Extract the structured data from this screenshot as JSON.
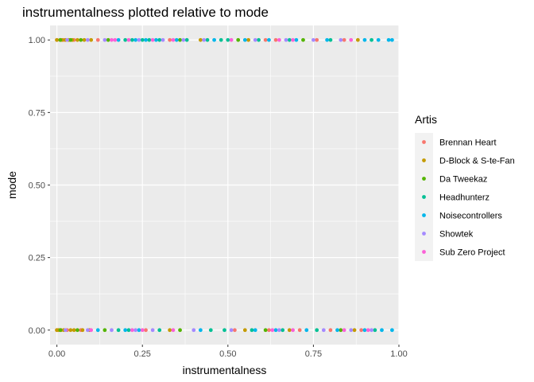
{
  "chart_data": {
    "type": "scatter",
    "title": "instrumentalness plotted relative to mode",
    "xlabel": "instrumentalness",
    "ylabel": "mode",
    "xlim": [
      -0.02,
      1.0
    ],
    "ylim": [
      -0.05,
      1.05
    ],
    "x_ticks": [
      0.0,
      0.25,
      0.5,
      0.75,
      1.0
    ],
    "x_tick_labels": [
      "0.00",
      "0.25",
      "0.50",
      "0.75",
      "1.00"
    ],
    "y_ticks": [
      0.0,
      0.25,
      0.5,
      0.75,
      1.0
    ],
    "y_tick_labels": [
      "0.00",
      "0.25",
      "0.50",
      "0.75",
      "1.00"
    ],
    "grid": true,
    "legend": {
      "title": "Artis",
      "placement": "right"
    },
    "series": [
      {
        "name": "Brennan Heart",
        "color": "#F8766D",
        "points": [
          [
            0.0,
            1
          ],
          [
            0.02,
            1
          ],
          [
            0.05,
            1
          ],
          [
            0.12,
            1
          ],
          [
            0.33,
            1
          ],
          [
            0.61,
            1
          ],
          [
            0.64,
            1
          ],
          [
            0.76,
            1
          ],
          [
            0.84,
            1
          ],
          [
            0.0,
            0
          ],
          [
            0.03,
            0
          ],
          [
            0.07,
            0
          ],
          [
            0.26,
            0
          ],
          [
            0.52,
            0
          ],
          [
            0.62,
            0
          ],
          [
            0.71,
            0
          ],
          [
            0.8,
            0
          ],
          [
            0.89,
            0
          ]
        ]
      },
      {
        "name": "D-Block & S-te-Fan",
        "color": "#C49A00",
        "points": [
          [
            0.0,
            1
          ],
          [
            0.01,
            1
          ],
          [
            0.015,
            1
          ],
          [
            0.025,
            1
          ],
          [
            0.035,
            1
          ],
          [
            0.045,
            1
          ],
          [
            0.06,
            1
          ],
          [
            0.08,
            1
          ],
          [
            0.1,
            1
          ],
          [
            0.42,
            1
          ],
          [
            0.56,
            1
          ],
          [
            0.88,
            1
          ],
          [
            0.0,
            0
          ],
          [
            0.005,
            0
          ],
          [
            0.012,
            0
          ],
          [
            0.02,
            0
          ],
          [
            0.04,
            0
          ],
          [
            0.05,
            0
          ],
          [
            0.075,
            0
          ],
          [
            0.095,
            0
          ],
          [
            0.33,
            0
          ],
          [
            0.55,
            0
          ],
          [
            0.68,
            0
          ],
          [
            0.87,
            0
          ]
        ]
      },
      {
        "name": "Da Tweekaz",
        "color": "#53B400",
        "points": [
          [
            0.01,
            1
          ],
          [
            0.04,
            1
          ],
          [
            0.07,
            1
          ],
          [
            0.15,
            1
          ],
          [
            0.36,
            1
          ],
          [
            0.53,
            1
          ],
          [
            0.72,
            1
          ],
          [
            0.01,
            0
          ],
          [
            0.06,
            0
          ],
          [
            0.14,
            0
          ],
          [
            0.36,
            0
          ],
          [
            0.61,
            0
          ],
          [
            0.83,
            0
          ]
        ]
      },
      {
        "name": "Headhunterz",
        "color": "#00C094",
        "points": [
          [
            0.2,
            1
          ],
          [
            0.22,
            1
          ],
          [
            0.25,
            1
          ],
          [
            0.27,
            1
          ],
          [
            0.3,
            1
          ],
          [
            0.38,
            1
          ],
          [
            0.44,
            1
          ],
          [
            0.48,
            1
          ],
          [
            0.5,
            1
          ],
          [
            0.59,
            1
          ],
          [
            0.68,
            1
          ],
          [
            0.8,
            1
          ],
          [
            0.92,
            1
          ],
          [
            0.18,
            0
          ],
          [
            0.21,
            0
          ],
          [
            0.3,
            0
          ],
          [
            0.45,
            0
          ],
          [
            0.49,
            0
          ],
          [
            0.57,
            0
          ],
          [
            0.66,
            0
          ],
          [
            0.76,
            0
          ],
          [
            0.93,
            0
          ]
        ]
      },
      {
        "name": "Noisecontrollers",
        "color": "#00B6EB",
        "points": [
          [
            0.18,
            1
          ],
          [
            0.23,
            1
          ],
          [
            0.26,
            1
          ],
          [
            0.29,
            1
          ],
          [
            0.35,
            1
          ],
          [
            0.46,
            1
          ],
          [
            0.55,
            1
          ],
          [
            0.62,
            1
          ],
          [
            0.7,
            1
          ],
          [
            0.79,
            1
          ],
          [
            0.9,
            1
          ],
          [
            0.94,
            1
          ],
          [
            0.97,
            1
          ],
          [
            0.98,
            1
          ],
          [
            0.12,
            0
          ],
          [
            0.2,
            0
          ],
          [
            0.24,
            0
          ],
          [
            0.42,
            0
          ],
          [
            0.58,
            0
          ],
          [
            0.64,
            0
          ],
          [
            0.73,
            0
          ],
          [
            0.82,
            0
          ],
          [
            0.9,
            0
          ],
          [
            0.95,
            0
          ],
          [
            0.98,
            0
          ]
        ]
      },
      {
        "name": "Showtek",
        "color": "#A58AFF",
        "points": [
          [
            0.03,
            1
          ],
          [
            0.09,
            1
          ],
          [
            0.14,
            1
          ],
          [
            0.24,
            1
          ],
          [
            0.31,
            1
          ],
          [
            0.37,
            1
          ],
          [
            0.43,
            1
          ],
          [
            0.58,
            1
          ],
          [
            0.67,
            1
          ],
          [
            0.75,
            1
          ],
          [
            0.83,
            1
          ],
          [
            0.025,
            0
          ],
          [
            0.09,
            0
          ],
          [
            0.16,
            0
          ],
          [
            0.23,
            0
          ],
          [
            0.28,
            0
          ],
          [
            0.4,
            0
          ],
          [
            0.51,
            0
          ],
          [
            0.65,
            0
          ],
          [
            0.78,
            0
          ],
          [
            0.86,
            0
          ],
          [
            0.92,
            0
          ]
        ]
      },
      {
        "name": "Sub Zero Project",
        "color": "#FB61D7",
        "points": [
          [
            0.16,
            1
          ],
          [
            0.17,
            1
          ],
          [
            0.21,
            1
          ],
          [
            0.28,
            1
          ],
          [
            0.34,
            1
          ],
          [
            0.51,
            1
          ],
          [
            0.65,
            1
          ],
          [
            0.69,
            1
          ],
          [
            0.86,
            1
          ],
          [
            0.1,
            0
          ],
          [
            0.22,
            0
          ],
          [
            0.25,
            0
          ],
          [
            0.34,
            0
          ],
          [
            0.63,
            0
          ],
          [
            0.69,
            0
          ],
          [
            0.84,
            0
          ],
          [
            0.91,
            0
          ]
        ]
      }
    ]
  }
}
